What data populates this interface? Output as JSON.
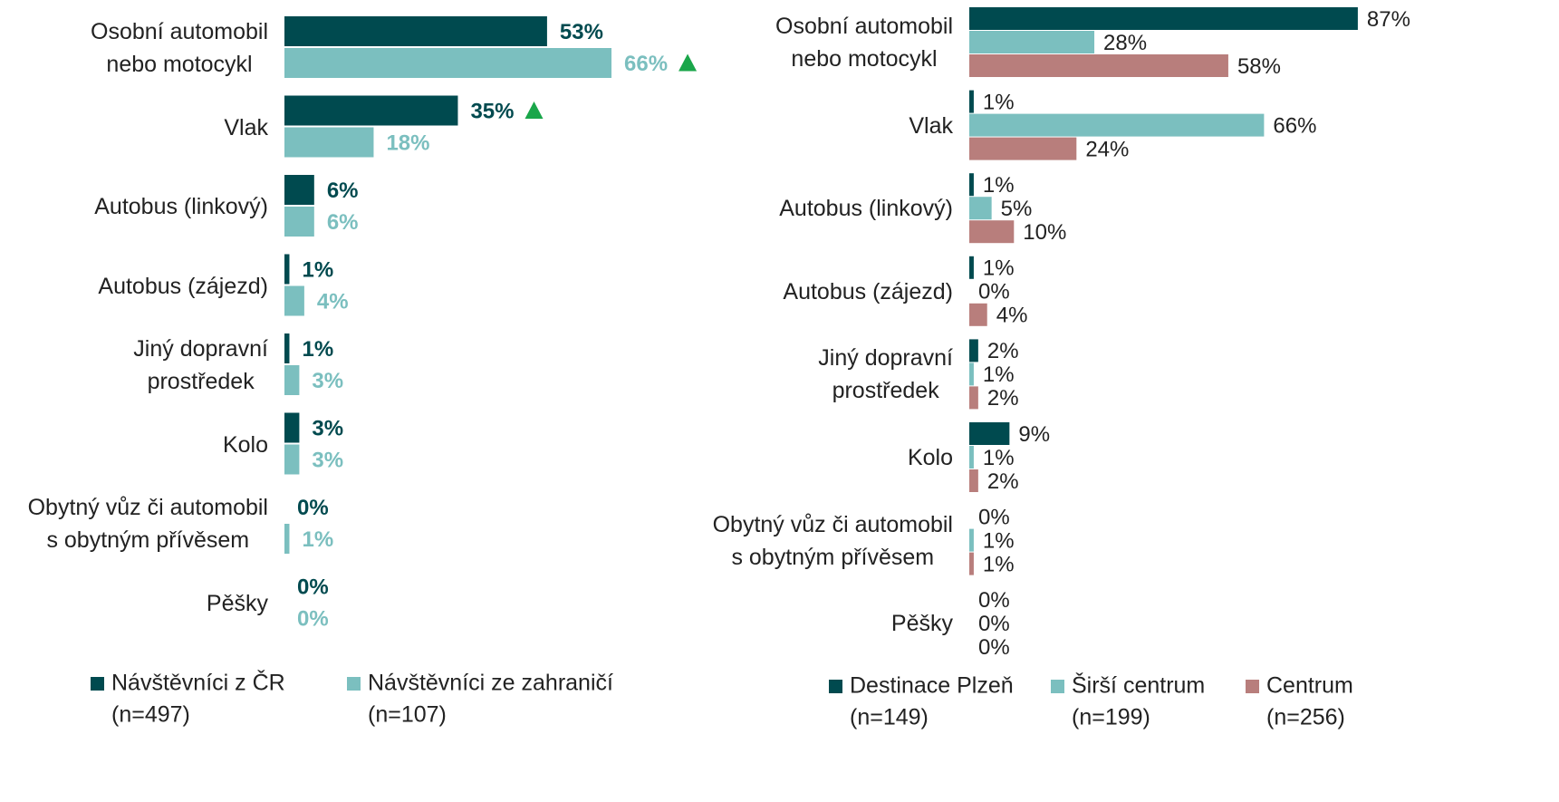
{
  "chart_data": [
    {
      "type": "bar",
      "orientation": "horizontal",
      "categories": [
        "Osobní automobil\nnebo motocykl",
        "Vlak",
        "Autobus (linkový)",
        "Autobus (zájezd)",
        "Jiný dopravní\nprostředek",
        "Kolo",
        "Obytný vůz či automobil\ns obytným přívěsem",
        "Pěšky"
      ],
      "xlim": [
        0,
        100
      ],
      "series": [
        {
          "name": "Návštěvníci z ČR",
          "n": "(n=497)",
          "color": "#004a4f",
          "values": [
            53,
            35,
            6,
            1,
            1,
            3,
            0,
            0
          ],
          "value_labels": [
            "53%",
            "35%",
            "6%",
            "1%",
            "1%",
            "3%",
            "0%",
            "0%"
          ],
          "up_markers": [
            false,
            true,
            false,
            false,
            false,
            false,
            false,
            false
          ]
        },
        {
          "name": "Návštěvníci ze zahraničí",
          "n": "(n=107)",
          "color": "#7bbfbf",
          "values": [
            66,
            18,
            6,
            4,
            3,
            3,
            1,
            0
          ],
          "value_labels": [
            "66%",
            "18%",
            "6%",
            "4%",
            "3%",
            "3%",
            "1%",
            "0%"
          ],
          "up_markers": [
            true,
            false,
            false,
            false,
            false,
            false,
            false,
            false
          ]
        }
      ]
    },
    {
      "type": "bar",
      "orientation": "horizontal",
      "categories": [
        "Osobní automobil\nnebo motocykl",
        "Vlak",
        "Autobus (linkový)",
        "Autobus (zájezd)",
        "Jiný dopravní\nprostředek",
        "Kolo",
        "Obytný vůz či automobil\ns obytným přívěsem",
        "Pěšky"
      ],
      "xlim": [
        0,
        100
      ],
      "series": [
        {
          "name": "Destinace Plzeň",
          "n": "(n=149)",
          "color": "#004a4f",
          "values": [
            87,
            1,
            1,
            1,
            2,
            9,
            0,
            0
          ],
          "value_labels": [
            "87%",
            "1%",
            "1%",
            "1%",
            "2%",
            "9%",
            "0%",
            "0%"
          ]
        },
        {
          "name": "Širší centrum",
          "n": "(n=199)",
          "color": "#7bbfbf",
          "values": [
            28,
            66,
            5,
            0,
            1,
            1,
            1,
            0
          ],
          "value_labels": [
            "28%",
            "66%",
            "5%",
            "0%",
            "1%",
            "1%",
            "1%",
            "0%"
          ]
        },
        {
          "name": "Centrum",
          "n": "(n=256)",
          "color": "#b87e7c",
          "values": [
            58,
            24,
            10,
            4,
            2,
            2,
            1,
            0
          ],
          "value_labels": [
            "58%",
            "24%",
            "10%",
            "4%",
            "2%",
            "2%",
            "1%",
            "0%"
          ]
        }
      ]
    }
  ]
}
